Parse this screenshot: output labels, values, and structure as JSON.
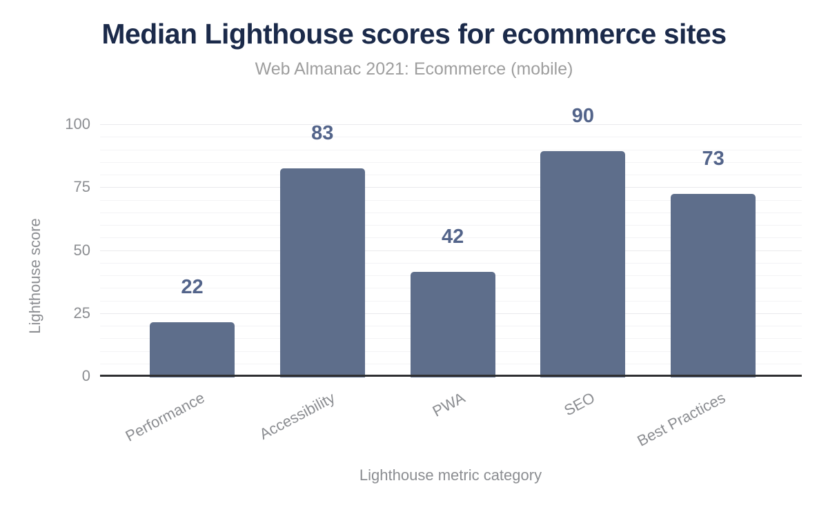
{
  "chart": {
    "title": "Median Lighthouse scores for ecommerce sites",
    "subtitle": "Web Almanac 2021: Ecommerce (mobile)",
    "y_axis_title": "Lighthouse score",
    "x_axis_title": "Lighthouse metric category"
  },
  "chart_data": {
    "type": "bar",
    "title": "Median Lighthouse scores for ecommerce sites",
    "subtitle": "Web Almanac 2021: Ecommerce (mobile)",
    "categories": [
      "Performance",
      "Accessibility",
      "PWA",
      "SEO",
      "Best Practices"
    ],
    "values": [
      22,
      83,
      42,
      90,
      73
    ],
    "xlabel": "Lighthouse metric category",
    "ylabel": "Lighthouse score",
    "ylim": [
      0,
      100
    ],
    "yticks": [
      0,
      25,
      50,
      75,
      100
    ],
    "minor_grid_step": 5,
    "major_grid_step": 25,
    "grid": true,
    "legend": false,
    "value_labels_position": "outside-top",
    "x_tick_angle_deg": -28,
    "colors": {
      "bar": "#5e6e8b",
      "value_label": "#53648a",
      "title": "#1b2a4a",
      "subtitle": "#9e9e9e",
      "axis_text": "#8b8d91",
      "axis_line": "#2e2f31",
      "grid_major": "#e9e9ec",
      "grid_minor": "#f3f3f5",
      "background": "#ffffff"
    }
  }
}
